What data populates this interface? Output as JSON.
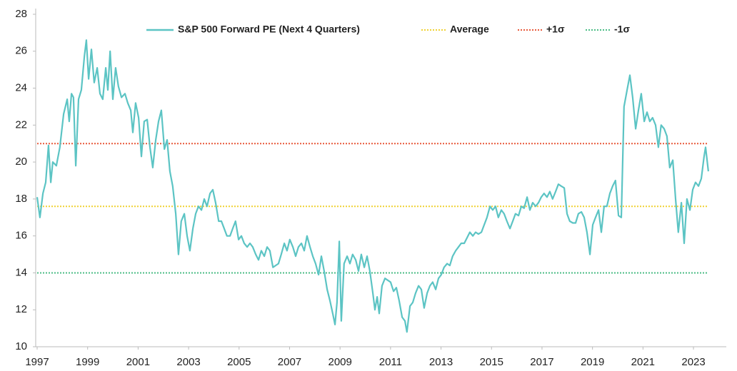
{
  "chart_data": {
    "type": "line",
    "series": [
      {
        "name": "S&P 500 Forward PE (Next 4 Quarters)",
        "color": "#5cc4c4",
        "x": [
          1997.0,
          1997.11,
          1997.23,
          1997.34,
          1997.45,
          1997.54,
          1997.62,
          1997.76,
          1997.9,
          1998.05,
          1998.19,
          1998.27,
          1998.36,
          1998.44,
          1998.53,
          1998.64,
          1998.75,
          1998.87,
          1998.95,
          1999.04,
          1999.15,
          1999.26,
          1999.38,
          1999.49,
          1999.6,
          1999.72,
          1999.8,
          1999.89,
          2000.0,
          2000.11,
          2000.22,
          2000.34,
          2000.48,
          2000.59,
          2000.71,
          2000.79,
          2000.9,
          2001.02,
          2001.13,
          2001.24,
          2001.36,
          2001.47,
          2001.58,
          2001.7,
          2001.81,
          2001.92,
          2002.04,
          2002.15,
          2002.26,
          2002.37,
          2002.49,
          2002.6,
          2002.71,
          2002.83,
          2002.94,
          2003.05,
          2003.17,
          2003.28,
          2003.39,
          2003.51,
          2003.62,
          2003.73,
          2003.85,
          2003.96,
          2004.07,
          2004.19,
          2004.3,
          2004.41,
          2004.52,
          2004.64,
          2004.75,
          2004.86,
          2004.98,
          2005.09,
          2005.2,
          2005.32,
          2005.43,
          2005.54,
          2005.66,
          2005.77,
          2005.88,
          2006.0,
          2006.11,
          2006.22,
          2006.34,
          2006.45,
          2006.56,
          2006.67,
          2006.79,
          2006.9,
          2007.01,
          2007.13,
          2007.24,
          2007.35,
          2007.47,
          2007.58,
          2007.69,
          2007.81,
          2007.92,
          2008.03,
          2008.15,
          2008.26,
          2008.37,
          2008.49,
          2008.6,
          2008.71,
          2008.8,
          2008.88,
          2008.97,
          2009.05,
          2009.16,
          2009.28,
          2009.39,
          2009.5,
          2009.62,
          2009.73,
          2009.84,
          2009.96,
          2010.07,
          2010.18,
          2010.3,
          2010.38,
          2010.47,
          2010.55,
          2010.66,
          2010.78,
          2010.89,
          2011.0,
          2011.12,
          2011.23,
          2011.34,
          2011.46,
          2011.57,
          2011.65,
          2011.77,
          2011.88,
          2011.99,
          2012.11,
          2012.22,
          2012.33,
          2012.45,
          2012.56,
          2012.67,
          2012.79,
          2012.9,
          2013.01,
          2013.12,
          2013.24,
          2013.35,
          2013.46,
          2013.58,
          2013.69,
          2013.8,
          2013.92,
          2014.03,
          2014.14,
          2014.26,
          2014.37,
          2014.48,
          2014.6,
          2014.71,
          2014.82,
          2014.94,
          2015.05,
          2015.16,
          2015.27,
          2015.39,
          2015.5,
          2015.61,
          2015.73,
          2015.84,
          2015.95,
          2016.07,
          2016.18,
          2016.29,
          2016.41,
          2016.52,
          2016.63,
          2016.75,
          2016.86,
          2016.97,
          2017.08,
          2017.2,
          2017.31,
          2017.42,
          2017.54,
          2017.65,
          2017.76,
          2017.88,
          2017.99,
          2018.1,
          2018.22,
          2018.33,
          2018.44,
          2018.56,
          2018.67,
          2018.78,
          2018.9,
          2019.01,
          2019.12,
          2019.24,
          2019.35,
          2019.46,
          2019.57,
          2019.69,
          2019.8,
          2019.91,
          2020.03,
          2020.14,
          2020.25,
          2020.37,
          2020.48,
          2020.59,
          2020.71,
          2020.82,
          2020.93,
          2021.05,
          2021.16,
          2021.27,
          2021.38,
          2021.5,
          2021.61,
          2021.72,
          2021.84,
          2021.95,
          2022.06,
          2022.18,
          2022.29,
          2022.4,
          2022.52,
          2022.63,
          2022.74,
          2022.86,
          2022.97,
          2023.08,
          2023.2,
          2023.31,
          2023.42,
          2023.48,
          2023.59
        ],
        "values": [
          18.1,
          17.0,
          18.3,
          18.9,
          20.9,
          18.9,
          20.0,
          19.8,
          20.8,
          22.6,
          23.4,
          22.2,
          23.7,
          23.5,
          19.8,
          23.4,
          23.9,
          25.7,
          26.6,
          24.5,
          26.1,
          24.3,
          25.1,
          23.7,
          23.4,
          25.1,
          23.9,
          26.0,
          23.4,
          25.1,
          24.1,
          23.5,
          23.7,
          23.2,
          22.8,
          21.6,
          23.2,
          22.4,
          20.3,
          22.2,
          22.3,
          20.8,
          19.7,
          21.2,
          22.2,
          22.8,
          20.7,
          21.2,
          19.5,
          18.7,
          17.2,
          15.0,
          16.8,
          17.2,
          16.0,
          15.2,
          16.4,
          17.2,
          17.6,
          17.4,
          18.0,
          17.6,
          18.3,
          18.5,
          17.8,
          16.8,
          16.8,
          16.4,
          16.0,
          16.0,
          16.4,
          16.8,
          15.8,
          16.0,
          15.6,
          15.4,
          15.6,
          15.4,
          15.0,
          14.7,
          15.2,
          14.9,
          15.4,
          15.2,
          14.3,
          14.4,
          14.5,
          15.0,
          15.6,
          15.2,
          15.8,
          15.4,
          14.9,
          15.4,
          15.6,
          15.2,
          16.0,
          15.4,
          14.9,
          14.5,
          13.9,
          14.9,
          14.1,
          13.1,
          12.5,
          11.8,
          11.2,
          12.4,
          15.7,
          11.4,
          14.5,
          14.9,
          14.5,
          15.0,
          14.7,
          14.1,
          15.0,
          14.3,
          14.9,
          14.1,
          12.9,
          12.0,
          12.7,
          11.8,
          13.3,
          13.7,
          13.6,
          13.5,
          13.0,
          13.2,
          12.5,
          11.6,
          11.4,
          10.8,
          12.2,
          12.4,
          12.9,
          13.3,
          13.1,
          12.1,
          12.9,
          13.3,
          13.5,
          13.1,
          13.7,
          13.9,
          14.3,
          14.5,
          14.4,
          14.9,
          15.2,
          15.4,
          15.6,
          15.6,
          15.9,
          16.2,
          16.0,
          16.2,
          16.1,
          16.2,
          16.6,
          17.0,
          17.6,
          17.4,
          17.6,
          17.0,
          17.4,
          17.2,
          16.8,
          16.4,
          16.8,
          17.2,
          17.1,
          17.6,
          17.5,
          18.1,
          17.4,
          17.8,
          17.6,
          17.8,
          18.1,
          18.3,
          18.1,
          18.4,
          18.0,
          18.4,
          18.8,
          18.7,
          18.6,
          17.2,
          16.8,
          16.7,
          16.7,
          17.2,
          17.3,
          17.0,
          16.2,
          15.0,
          16.6,
          17.0,
          17.4,
          16.2,
          17.6,
          17.6,
          18.3,
          18.7,
          19.0,
          17.1,
          17.0,
          23.0,
          23.9,
          24.7,
          23.5,
          21.8,
          22.8,
          23.7,
          22.2,
          22.7,
          22.2,
          22.4,
          22.0,
          20.8,
          22.0,
          21.8,
          21.4,
          19.7,
          20.1,
          18.0,
          16.2,
          17.8,
          15.6,
          18.0,
          17.4,
          18.5,
          18.9,
          18.7,
          19.1,
          20.3,
          20.8,
          19.5
        ]
      }
    ],
    "reference_lines": [
      {
        "name": "Average",
        "value": 17.6,
        "color": "#f0d234"
      },
      {
        "name": "+1σ",
        "value": 21.0,
        "color": "#e85a3c"
      },
      {
        "name": "-1σ",
        "value": 14.0,
        "color": "#4cbd86"
      }
    ],
    "xlim": [
      1997,
      2024.3
    ],
    "xticks": [
      1997,
      1999,
      2001,
      2003,
      2005,
      2007,
      2009,
      2011,
      2013,
      2015,
      2017,
      2019,
      2021,
      2023
    ],
    "ylim": [
      10,
      28
    ],
    "yticks": [
      10,
      12,
      14,
      16,
      18,
      20,
      22,
      24,
      26,
      28
    ],
    "legend": "top"
  }
}
